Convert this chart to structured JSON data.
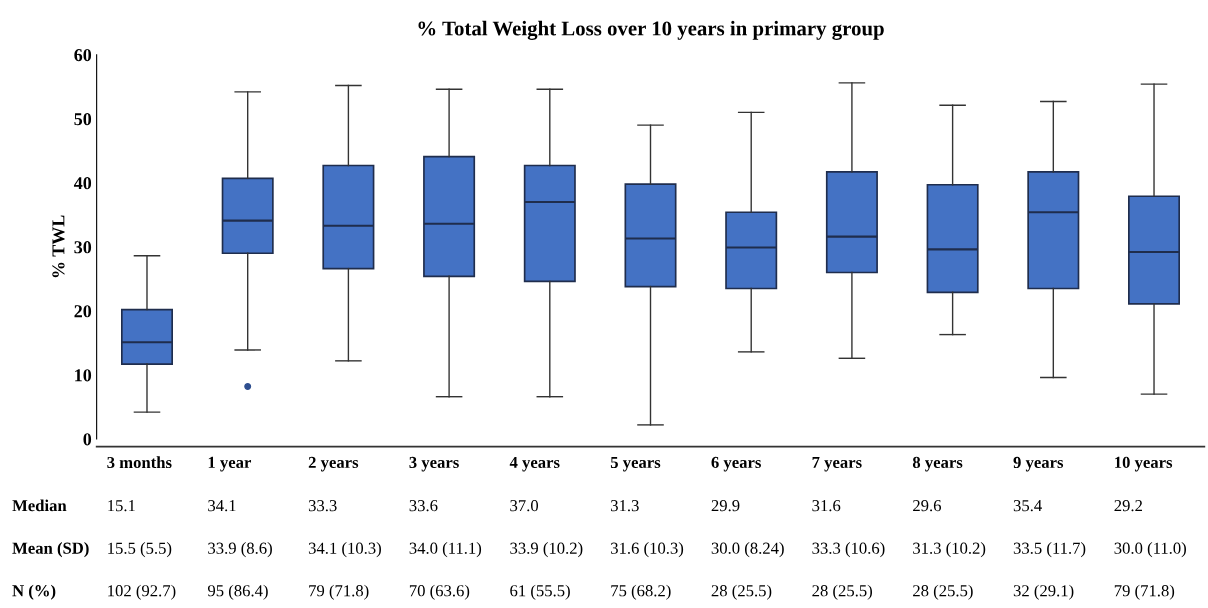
{
  "chart_data": {
    "type": "box",
    "title": "% Total Weight Loss over 10 years in primary group",
    "ylabel": "% TWL",
    "categories": [
      "3 months",
      "1 year",
      "2 years",
      "3 years",
      "4 years",
      "5 years",
      "6 years",
      "7 years",
      "8 years",
      "9 years",
      "10 years"
    ],
    "color": "#4472c4",
    "boxes": [
      {
        "low": 4.2,
        "q1": 11.7,
        "median": 15.1,
        "q3": 20.2,
        "high": 28.6
      },
      {
        "low": 13.9,
        "q1": 29.0,
        "median": 34.1,
        "q3": 40.7,
        "high": 54.2,
        "outliers": [
          8.2
        ]
      },
      {
        "low": 12.2,
        "q1": 26.6,
        "median": 33.3,
        "q3": 42.7,
        "high": 55.2
      },
      {
        "low": 6.6,
        "q1": 25.4,
        "median": 33.6,
        "q3": 44.1,
        "high": 54.6
      },
      {
        "low": 6.6,
        "q1": 24.6,
        "median": 37.0,
        "q3": 42.7,
        "high": 54.6
      },
      {
        "low": 2.2,
        "q1": 23.8,
        "median": 31.3,
        "q3": 39.8,
        "high": 49.0
      },
      {
        "low": 13.6,
        "q1": 23.5,
        "median": 29.9,
        "q3": 35.4,
        "high": 51.0
      },
      {
        "low": 12.6,
        "q1": 26.0,
        "median": 31.6,
        "q3": 41.7,
        "high": 55.6
      },
      {
        "low": 16.3,
        "q1": 22.9,
        "median": 29.6,
        "q3": 39.7,
        "high": 52.1
      },
      {
        "low": 9.6,
        "q1": 23.5,
        "median": 35.4,
        "q3": 41.7,
        "high": 52.7
      },
      {
        "low": 7.0,
        "q1": 21.1,
        "median": 29.2,
        "q3": 37.9,
        "high": 55.4
      }
    ],
    "ylim": [
      0,
      60
    ],
    "yticks": [
      0,
      10,
      20,
      30,
      40,
      50,
      60
    ],
    "grid": false,
    "annotations": [
      "Median",
      "15.1",
      "34.1",
      "33.3",
      "33.6",
      "37.0",
      "31.3",
      "29.9",
      "31.6",
      "29.6",
      "35.4",
      "29.2",
      "Mean (SD)",
      "15.5 (5.5)",
      "33.9 (8.6)",
      "34.1 (10.3)",
      "34.0 (11.1)",
      "33.9 (10.2)",
      "31.6 (10.3)",
      "30.0 (8.24)",
      "33.3 (10.6)",
      "31.3 (10.2)",
      "33.5 (11.7)",
      "30.0 (11.0)",
      "N (%)",
      "102 (92.7)",
      "95 (86.4)",
      "79 (71.8)",
      "70 (63.6)",
      "61 (55.5)",
      "75 (68.2)",
      "28 (25.5)",
      "28 (25.5)",
      "28 (25.5)",
      "32 (29.1)",
      "79 (71.8)"
    ]
  }
}
